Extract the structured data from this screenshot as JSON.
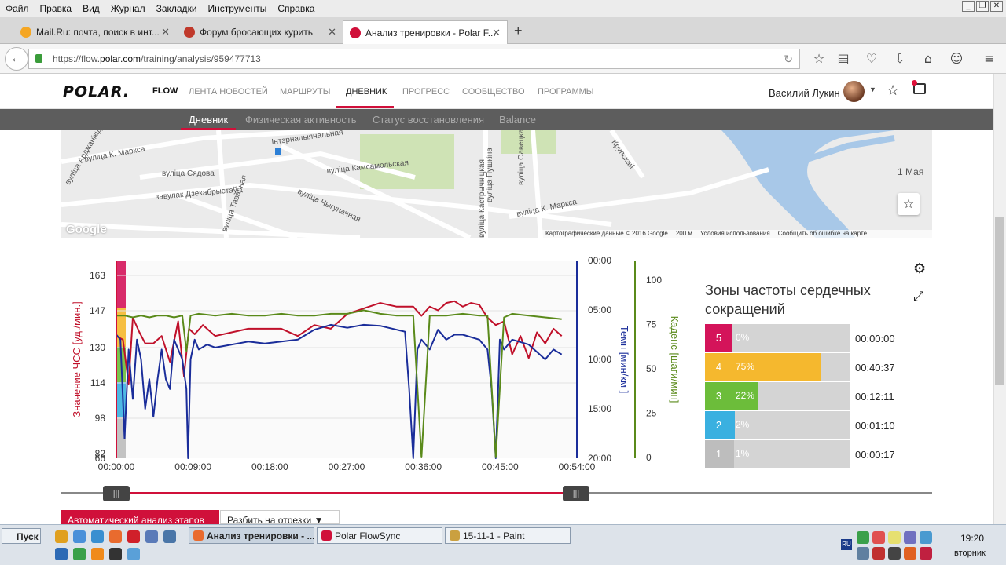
{
  "menu": [
    "Файл",
    "Правка",
    "Вид",
    "Журнал",
    "Закладки",
    "Инструменты",
    "Справка"
  ],
  "tabs": [
    {
      "label": "Mail.Ru: почта, поиск в инт...",
      "color": "#f5a623"
    },
    {
      "label": "Форум бросающих курить",
      "color": "#c0392b"
    },
    {
      "label": "Анализ тренировки - Polar F...",
      "color": "#d0103a"
    }
  ],
  "address": {
    "prefix": "https://flow.",
    "domain": "polar.com",
    "path": "/training/analysis/959477713"
  },
  "polar": {
    "logo": "POLAR.",
    "flow": "FLOW",
    "nav": [
      "ЛЕНТА НОВОСТЕЙ",
      "МАРШРУТЫ",
      "ДНЕВНИК",
      "ПРОГРЕСС",
      "СООБЩЕСТВО",
      "ПРОГРАММЫ"
    ],
    "user": "Василий Лукин"
  },
  "subnav": [
    "Дневник",
    "Физическая активность",
    "Статус восстановления",
    "Balance"
  ],
  "map": {
    "streets": [
      "Інтэрнацыянальная",
      "вуліца Сядова",
      "вуліца К. Маркса",
      "вуліца Камсамольская",
      "завулак Дзекабрыстаў",
      "вуліца Чыгуначная",
      "вуліца Таварная",
      "вуліца Пушкіна",
      "вуліца Савецкая",
      "вуліца Кастрычніцкая",
      "вуліца К. Маркса",
      "Крупскай",
      "1 Мая",
      "вуліца Арджанікідзе"
    ],
    "google": "Google",
    "footer": [
      "Картографические данные © 2016 Google",
      "200 м",
      "Условия использования",
      "Сообщить об ошибке на карте"
    ]
  },
  "chart_data": {
    "type": "line",
    "x_ticks": [
      "00:00:00",
      "00:09:00",
      "00:18:00",
      "00:27:00",
      "00:36:00",
      "00:45:00",
      "00:54:00"
    ],
    "axes": {
      "hr": {
        "label": "Значение ЧСС [уд./мин.]",
        "ticks": [
          "163",
          "147",
          "130",
          "114",
          "98",
          "82",
          "66"
        ],
        "color": "#c0102a"
      },
      "pace": {
        "label": "Темп [мин/км ]",
        "ticks": [
          "00:00",
          "05:00",
          "10:00",
          "15:00",
          "20:00"
        ],
        "color": "#1a2d9a"
      },
      "cadence": {
        "label": "Каденс [шаги/мин]",
        "ticks": [
          "100",
          "75",
          "50",
          "25",
          "0"
        ],
        "color": "#5a8a1a"
      }
    },
    "xlim": [
      0,
      55
    ],
    "series": [
      {
        "axis": "hr",
        "color": "#c0102a",
        "x": [
          0,
          0.8,
          1.5,
          2,
          2.8,
          3.5,
          4.5,
          5.5,
          6.5,
          7.5,
          8.2,
          8.8,
          9.5,
          10.5,
          12,
          14,
          16,
          18,
          20,
          22,
          24,
          26,
          28,
          30,
          32,
          34,
          36,
          37,
          38,
          39,
          40,
          41,
          42,
          43,
          44,
          45,
          46,
          47,
          48,
          49,
          50,
          51,
          52,
          53,
          54
        ],
        "y": [
          130,
          128,
          104,
          140,
          132,
          126,
          126,
          130,
          116,
          138,
          108,
          134,
          131,
          136,
          130,
          132,
          134,
          134,
          134,
          130,
          136,
          134,
          142,
          145,
          148,
          146,
          146,
          141,
          146,
          144,
          148,
          149,
          146,
          148,
          147,
          140,
          136,
          138,
          120,
          130,
          118,
          132,
          126,
          134,
          130
        ]
      },
      {
        "axis": "pace",
        "color": "#1a2d9a",
        "x": [
          0,
          0.5,
          1,
          1.5,
          2,
          2.5,
          3,
          3.5,
          4,
          4.5,
          5,
          5.5,
          6,
          6.5,
          7,
          8,
          8.5,
          8.7,
          9,
          9.5,
          10,
          11,
          12,
          14,
          16,
          18,
          20,
          22,
          24,
          26,
          28,
          30,
          32,
          34,
          35,
          35.5,
          36,
          36.5,
          37,
          38,
          39,
          40,
          41,
          42,
          44,
          45,
          45.5,
          46,
          46.5,
          47,
          48,
          50,
          52,
          53,
          54
        ],
        "y": [
          7.5,
          8,
          18,
          9,
          14,
          8,
          10,
          15,
          12,
          15.8,
          12,
          9,
          12,
          13,
          8,
          10,
          13,
          20,
          10,
          8,
          9,
          8.5,
          8.8,
          8.5,
          8.2,
          8.4,
          8.2,
          8,
          7,
          6.5,
          6.8,
          6.5,
          6.6,
          7,
          7.2,
          13,
          20,
          9,
          8,
          9,
          7,
          8,
          7.5,
          7.5,
          8,
          9,
          13,
          20,
          8,
          9,
          8,
          8.5,
          10,
          9,
          9.5
        ]
      },
      {
        "axis": "cadence",
        "color": "#5a8a1a",
        "x": [
          0,
          1,
          2,
          3,
          4,
          5,
          6,
          7,
          8,
          8.5,
          9,
          10,
          12,
          14,
          16,
          18,
          20,
          22,
          24,
          26,
          28,
          30,
          32,
          34,
          36,
          37,
          38,
          40,
          42,
          44,
          45,
          46,
          47,
          48,
          50,
          52,
          54
        ],
        "y": [
          80,
          80,
          79,
          80,
          79,
          80,
          80,
          79,
          80,
          60,
          80,
          81,
          80,
          81,
          80,
          80,
          81,
          80,
          80,
          81,
          81,
          83,
          81,
          80,
          80,
          0,
          80,
          80,
          81,
          80,
          80,
          0,
          79,
          81,
          80,
          79,
          78
        ]
      }
    ]
  },
  "zones": {
    "title": "Зоны частоты сердечных сокращений",
    "rows": [
      {
        "num": "5",
        "pct": "0%",
        "fraction": 0.0,
        "time": "00:00:00",
        "color": "#d4145a"
      },
      {
        "num": "4",
        "pct": "75%",
        "fraction": 0.75,
        "time": "00:40:37",
        "color": "#f5b82e"
      },
      {
        "num": "3",
        "pct": "22%",
        "fraction": 0.22,
        "time": "00:12:11",
        "color": "#6cbd3a"
      },
      {
        "num": "2",
        "pct": "2%",
        "fraction": 0.02,
        "time": "00:01:10",
        "color": "#3ab0e0"
      },
      {
        "num": "1",
        "pct": "1%",
        "fraction": 0.01,
        "time": "00:00:17",
        "color": "#bdbdbd"
      }
    ]
  },
  "buttons": {
    "auto": "Автоматический анализ этапов",
    "split": "Разбить на отрезки"
  },
  "taskbar": {
    "start": "Пуск",
    "tasks": [
      "Анализ тренировки - ...",
      "Polar FlowSync",
      "15-11-1 - Paint"
    ],
    "lang": "RU",
    "time": "19:20",
    "day": "вторник"
  }
}
